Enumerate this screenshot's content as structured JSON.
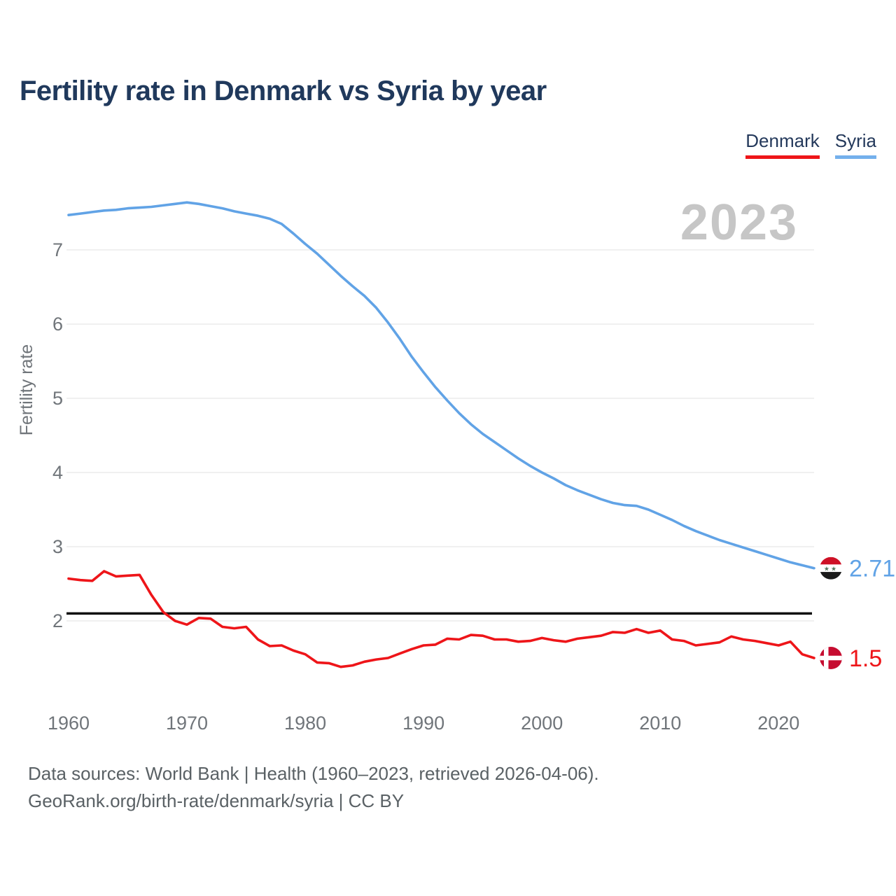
{
  "header": {
    "title": "Fertility rate in Denmark vs Syria by year"
  },
  "legend": [
    {
      "label": "Denmark",
      "color": "#ee1519"
    },
    {
      "label": "Syria",
      "color": "#74b0ec"
    }
  ],
  "watermark": "2023",
  "chart_data": {
    "type": "line",
    "title": "Fertility rate in Denmark vs Syria by year",
    "xlabel": "",
    "ylabel": "Fertility rate",
    "grid": "horizontal",
    "legend_position": "top-right",
    "ylim": [
      1.3,
      7.8
    ],
    "yticks": [
      2,
      3,
      4,
      5,
      6,
      7
    ],
    "xticks": [
      1960,
      1970,
      1980,
      1990,
      2000,
      2010,
      2020
    ],
    "reference_line": 2.1,
    "x": [
      1960,
      1961,
      1962,
      1963,
      1964,
      1965,
      1966,
      1967,
      1968,
      1969,
      1970,
      1971,
      1972,
      1973,
      1974,
      1975,
      1976,
      1977,
      1978,
      1979,
      1980,
      1981,
      1982,
      1983,
      1984,
      1985,
      1986,
      1987,
      1988,
      1989,
      1990,
      1991,
      1992,
      1993,
      1994,
      1995,
      1996,
      1997,
      1998,
      1999,
      2000,
      2001,
      2002,
      2003,
      2004,
      2005,
      2006,
      2007,
      2008,
      2009,
      2010,
      2011,
      2012,
      2013,
      2014,
      2015,
      2016,
      2017,
      2018,
      2019,
      2020,
      2021,
      2022,
      2023
    ],
    "series": [
      {
        "name": "Syria",
        "color": "#61a3e6",
        "end_label": "2.71",
        "flag_icon": "syria-flag-icon",
        "values": [
          7.47,
          7.49,
          7.51,
          7.53,
          7.54,
          7.56,
          7.57,
          7.58,
          7.6,
          7.62,
          7.64,
          7.62,
          7.59,
          7.56,
          7.52,
          7.49,
          7.46,
          7.42,
          7.35,
          7.22,
          7.08,
          6.95,
          6.8,
          6.65,
          6.51,
          6.38,
          6.22,
          6.02,
          5.8,
          5.56,
          5.35,
          5.15,
          4.97,
          4.8,
          4.65,
          4.52,
          4.41,
          4.3,
          4.19,
          4.09,
          4.0,
          3.92,
          3.83,
          3.76,
          3.7,
          3.64,
          3.59,
          3.56,
          3.55,
          3.5,
          3.43,
          3.36,
          3.28,
          3.21,
          3.15,
          3.09,
          3.04,
          2.99,
          2.94,
          2.89,
          2.84,
          2.79,
          2.75,
          2.71
        ]
      },
      {
        "name": "Denmark",
        "color": "#ee1519",
        "end_label": "1.5",
        "flag_icon": "denmark-flag-icon",
        "values": [
          2.57,
          2.55,
          2.54,
          2.67,
          2.6,
          2.61,
          2.62,
          2.35,
          2.12,
          2.0,
          1.95,
          2.04,
          2.03,
          1.92,
          1.9,
          1.92,
          1.75,
          1.66,
          1.67,
          1.6,
          1.55,
          1.44,
          1.43,
          1.38,
          1.4,
          1.45,
          1.48,
          1.5,
          1.56,
          1.62,
          1.67,
          1.68,
          1.76,
          1.75,
          1.81,
          1.8,
          1.75,
          1.75,
          1.72,
          1.73,
          1.77,
          1.74,
          1.72,
          1.76,
          1.78,
          1.8,
          1.85,
          1.84,
          1.89,
          1.84,
          1.87,
          1.75,
          1.73,
          1.67,
          1.69,
          1.71,
          1.79,
          1.75,
          1.73,
          1.7,
          1.67,
          1.72,
          1.55,
          1.5
        ]
      }
    ]
  },
  "flag_colors": {
    "syria_red": "#ce1126",
    "syria_black": "#1a1a1a",
    "syria_star": "#50735a",
    "denmark_red": "#c60c30",
    "denmark_cross": "#ffffff"
  },
  "footer": {
    "line1": "Data sources: World Bank | Health (1960–2023, retrieved 2026-04-06).",
    "line2": "GeoRank.org/birth-rate/denmark/syria | CC BY"
  }
}
